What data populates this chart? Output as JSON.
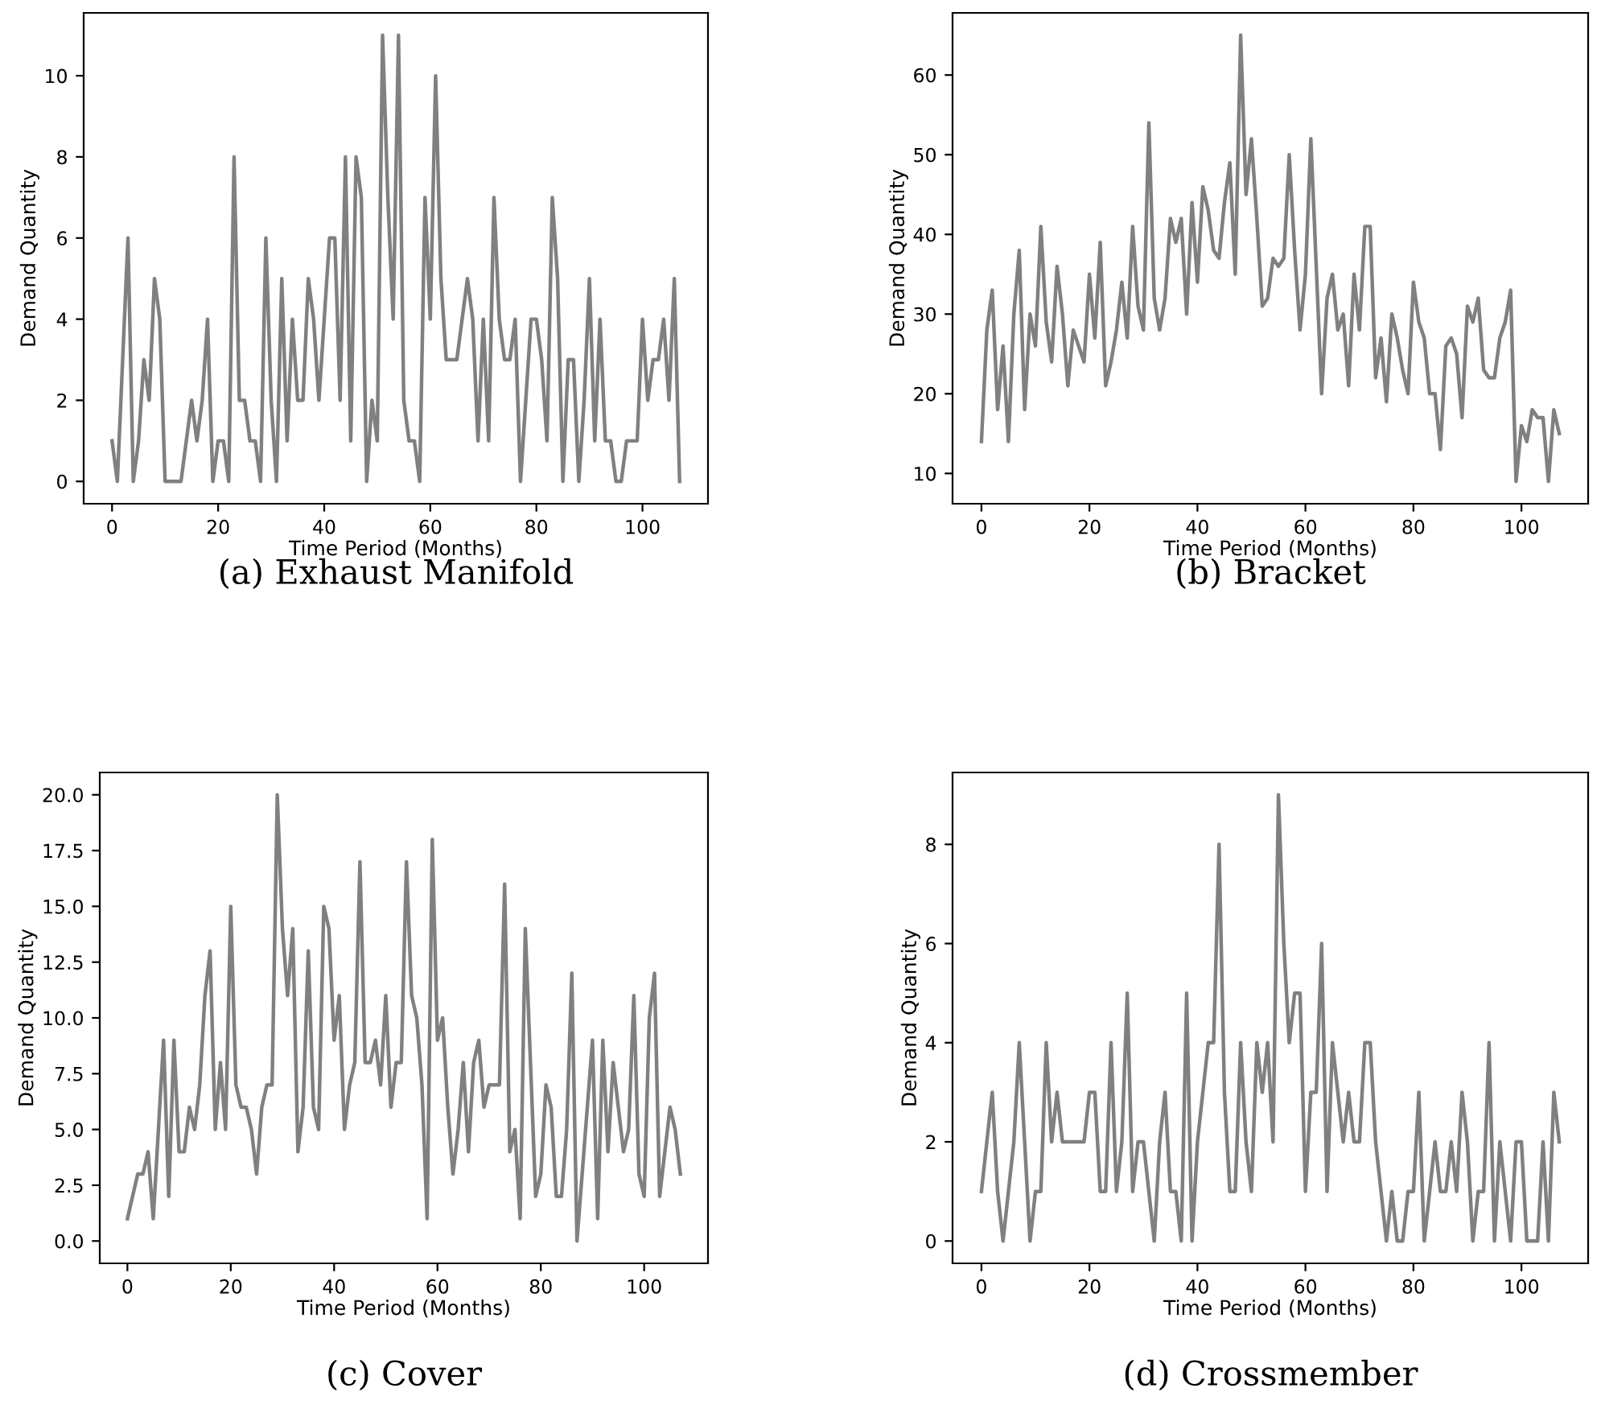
{
  "chart_data": [
    {
      "type": "line",
      "xlabel": "Time Period (Months)",
      "ylabel": "Demand Quantity",
      "annotations": [
        "(a) Exhaust Manifold"
      ],
      "x": [
        0,
        1,
        2,
        3,
        4,
        5,
        6,
        7,
        8,
        9,
        10,
        11,
        12,
        13,
        14,
        15,
        16,
        17,
        18,
        19,
        20,
        21,
        22,
        23,
        24,
        25,
        26,
        27,
        28,
        29,
        30,
        31,
        32,
        33,
        34,
        35,
        36,
        37,
        38,
        39,
        40,
        41,
        42,
        43,
        44,
        45,
        46,
        47,
        48,
        49,
        50,
        51,
        52,
        53,
        54,
        55,
        56,
        57,
        58,
        59,
        60,
        61,
        62,
        63,
        64,
        65,
        66,
        67,
        68,
        69,
        70,
        71,
        72,
        73,
        74,
        75,
        76,
        77,
        78,
        79,
        80,
        81,
        82,
        83,
        84,
        85,
        86,
        87,
        88,
        89,
        90,
        91,
        92,
        93,
        94,
        95,
        96,
        97,
        98,
        99,
        100,
        101,
        102,
        103,
        104,
        105,
        106,
        107
      ],
      "xlim": [
        -5.35,
        112.35
      ],
      "xticks": [
        0,
        20,
        40,
        60,
        80,
        100
      ],
      "ylim": [
        -0.55,
        11.55
      ],
      "yticks": [
        0,
        2,
        4,
        6,
        8,
        10
      ],
      "grid": false,
      "legend": false,
      "series": [
        {
          "color": "#808080",
          "values": [
            1,
            0,
            3,
            6,
            0,
            1,
            3,
            2,
            5,
            4,
            0,
            0,
            0,
            0,
            1,
            2,
            1,
            2,
            4,
            0,
            1,
            1,
            0,
            8,
            2,
            2,
            1,
            1,
            0,
            6,
            2,
            0,
            5,
            1,
            4,
            2,
            2,
            5,
            4,
            2,
            4,
            6,
            6,
            2,
            8,
            1,
            8,
            7,
            0,
            2,
            1,
            11,
            7,
            4,
            11,
            2,
            1,
            1,
            0,
            7,
            4,
            10,
            5,
            3,
            3,
            3,
            4,
            5,
            4,
            1,
            4,
            1,
            7,
            4,
            3,
            3,
            4,
            0,
            2,
            4,
            4,
            3,
            1,
            7,
            5,
            0,
            3,
            3,
            0,
            2,
            5,
            1,
            4,
            1,
            1,
            0,
            0,
            1,
            1,
            1,
            4,
            2,
            3,
            3,
            4,
            2,
            5,
            0
          ]
        }
      ]
    },
    {
      "type": "line",
      "xlabel": "Time Period (Months)",
      "ylabel": "Demand Quantity",
      "annotations": [
        "(b) Bracket"
      ],
      "x": [
        0,
        1,
        2,
        3,
        4,
        5,
        6,
        7,
        8,
        9,
        10,
        11,
        12,
        13,
        14,
        15,
        16,
        17,
        18,
        19,
        20,
        21,
        22,
        23,
        24,
        25,
        26,
        27,
        28,
        29,
        30,
        31,
        32,
        33,
        34,
        35,
        36,
        37,
        38,
        39,
        40,
        41,
        42,
        43,
        44,
        45,
        46,
        47,
        48,
        49,
        50,
        51,
        52,
        53,
        54,
        55,
        56,
        57,
        58,
        59,
        60,
        61,
        62,
        63,
        64,
        65,
        66,
        67,
        68,
        69,
        70,
        71,
        72,
        73,
        74,
        75,
        76,
        77,
        78,
        79,
        80,
        81,
        82,
        83,
        84,
        85,
        86,
        87,
        88,
        89,
        90,
        91,
        92,
        93,
        94,
        95,
        96,
        97,
        98,
        99,
        100,
        101,
        102,
        103,
        104,
        105,
        106,
        107
      ],
      "xlim": [
        -5.35,
        112.35
      ],
      "xticks": [
        0,
        20,
        40,
        60,
        80,
        100
      ],
      "ylim": [
        6.2,
        67.8
      ],
      "yticks": [
        10,
        20,
        30,
        40,
        50,
        60
      ],
      "grid": false,
      "legend": false,
      "series": [
        {
          "color": "#808080",
          "values": [
            14,
            28,
            33,
            18,
            26,
            14,
            30,
            38,
            18,
            30,
            26,
            41,
            29,
            24,
            36,
            30,
            21,
            28,
            26,
            24,
            35,
            27,
            39,
            21,
            24,
            28,
            34,
            27,
            41,
            31,
            28,
            54,
            32,
            28,
            32,
            42,
            39,
            42,
            30,
            44,
            34,
            46,
            43,
            38,
            37,
            44,
            49,
            35,
            65,
            45,
            52,
            42,
            31,
            32,
            37,
            36,
            37,
            50,
            38,
            28,
            35,
            52,
            36,
            20,
            32,
            35,
            28,
            30,
            21,
            35,
            28,
            41,
            41,
            22,
            27,
            19,
            30,
            27,
            23,
            20,
            34,
            29,
            27,
            20,
            20,
            13,
            26,
            27,
            25,
            17,
            31,
            29,
            32,
            23,
            22,
            22,
            27,
            29,
            33,
            9,
            16,
            14,
            18,
            17,
            17,
            9,
            18,
            15
          ]
        }
      ]
    },
    {
      "type": "line",
      "xlabel": "Time Period (Months)",
      "ylabel": "Demand Quantity",
      "annotations": [
        "(c) Cover"
      ],
      "x": [
        0,
        1,
        2,
        3,
        4,
        5,
        6,
        7,
        8,
        9,
        10,
        11,
        12,
        13,
        14,
        15,
        16,
        17,
        18,
        19,
        20,
        21,
        22,
        23,
        24,
        25,
        26,
        27,
        28,
        29,
        30,
        31,
        32,
        33,
        34,
        35,
        36,
        37,
        38,
        39,
        40,
        41,
        42,
        43,
        44,
        45,
        46,
        47,
        48,
        49,
        50,
        51,
        52,
        53,
        54,
        55,
        56,
        57,
        58,
        59,
        60,
        61,
        62,
        63,
        64,
        65,
        66,
        67,
        68,
        69,
        70,
        71,
        72,
        73,
        74,
        75,
        76,
        77,
        78,
        79,
        80,
        81,
        82,
        83,
        84,
        85,
        86,
        87,
        88,
        89,
        90,
        91,
        92,
        93,
        94,
        95,
        96,
        97,
        98,
        99,
        100,
        101,
        102,
        103,
        104,
        105,
        106,
        107
      ],
      "xlim": [
        -5.35,
        112.35
      ],
      "xticks": [
        0,
        20,
        40,
        60,
        80,
        100
      ],
      "ylim": [
        -1,
        21
      ],
      "yticks": [
        {
          "value": 0,
          "label": "0.0"
        },
        {
          "value": 2.5,
          "label": "2.5"
        },
        {
          "value": 5,
          "label": "5.0"
        },
        {
          "value": 7.5,
          "label": "7.5"
        },
        {
          "value": 10,
          "label": "10.0"
        },
        {
          "value": 12.5,
          "label": "12.5"
        },
        {
          "value": 15,
          "label": "15.0"
        },
        {
          "value": 17.5,
          "label": "17.5"
        },
        {
          "value": 20,
          "label": "20.0"
        }
      ],
      "grid": false,
      "legend": false,
      "series": [
        {
          "color": "#808080",
          "values": [
            1,
            2,
            3,
            3,
            4,
            1,
            5,
            9,
            2,
            9,
            4,
            4,
            6,
            5,
            7,
            11,
            13,
            5,
            8,
            5,
            15,
            7,
            6,
            6,
            5,
            3,
            6,
            7,
            7,
            20,
            14,
            11,
            14,
            4,
            6,
            13,
            6,
            5,
            15,
            14,
            9,
            11,
            5,
            7,
            8,
            17,
            8,
            8,
            9,
            7,
            11,
            6,
            8,
            8,
            17,
            11,
            10,
            7,
            1,
            18,
            9,
            10,
            6,
            3,
            5,
            8,
            4,
            8,
            9,
            6,
            7,
            7,
            7,
            16,
            4,
            5,
            1,
            14,
            8,
            2,
            3,
            7,
            6,
            2,
            2,
            5,
            12,
            0,
            3,
            6,
            9,
            1,
            9,
            4,
            8,
            6,
            4,
            5,
            11,
            3,
            2,
            10,
            12,
            2,
            4,
            6,
            5,
            3
          ]
        }
      ]
    },
    {
      "type": "line",
      "xlabel": "Time Period (Months)",
      "ylabel": "Demand Quantity",
      "annotations": [
        "(d) Crossmember"
      ],
      "x": [
        0,
        1,
        2,
        3,
        4,
        5,
        6,
        7,
        8,
        9,
        10,
        11,
        12,
        13,
        14,
        15,
        16,
        17,
        18,
        19,
        20,
        21,
        22,
        23,
        24,
        25,
        26,
        27,
        28,
        29,
        30,
        31,
        32,
        33,
        34,
        35,
        36,
        37,
        38,
        39,
        40,
        41,
        42,
        43,
        44,
        45,
        46,
        47,
        48,
        49,
        50,
        51,
        52,
        53,
        54,
        55,
        56,
        57,
        58,
        59,
        60,
        61,
        62,
        63,
        64,
        65,
        66,
        67,
        68,
        69,
        70,
        71,
        72,
        73,
        74,
        75,
        76,
        77,
        78,
        79,
        80,
        81,
        82,
        83,
        84,
        85,
        86,
        87,
        88,
        89,
        90,
        91,
        92,
        93,
        94,
        95,
        96,
        97,
        98,
        99,
        100,
        101,
        102,
        103,
        104,
        105,
        106,
        107
      ],
      "xlim": [
        -5.35,
        112.35
      ],
      "xticks": [
        0,
        20,
        40,
        60,
        80,
        100
      ],
      "ylim": [
        -0.45,
        9.45
      ],
      "yticks": [
        0,
        2,
        4,
        6,
        8
      ],
      "grid": false,
      "legend": false,
      "series": [
        {
          "color": "#808080",
          "values": [
            1,
            2,
            3,
            1,
            0,
            1,
            2,
            4,
            2,
            0,
            1,
            1,
            4,
            2,
            3,
            2,
            2,
            2,
            2,
            2,
            3,
            3,
            1,
            1,
            4,
            1,
            2,
            5,
            1,
            2,
            2,
            1,
            0,
            2,
            3,
            1,
            1,
            0,
            5,
            0,
            2,
            3,
            4,
            4,
            8,
            3,
            1,
            1,
            4,
            2,
            1,
            4,
            3,
            4,
            2,
            9,
            6,
            4,
            5,
            5,
            1,
            3,
            3,
            6,
            1,
            4,
            3,
            2,
            3,
            2,
            2,
            4,
            4,
            2,
            1,
            0,
            1,
            0,
            0,
            1,
            1,
            3,
            0,
            1,
            2,
            1,
            1,
            2,
            1,
            3,
            2,
            0,
            1,
            1,
            4,
            0,
            2,
            1,
            0,
            2,
            2,
            0,
            0,
            0,
            2,
            0,
            3,
            2
          ]
        }
      ]
    }
  ]
}
